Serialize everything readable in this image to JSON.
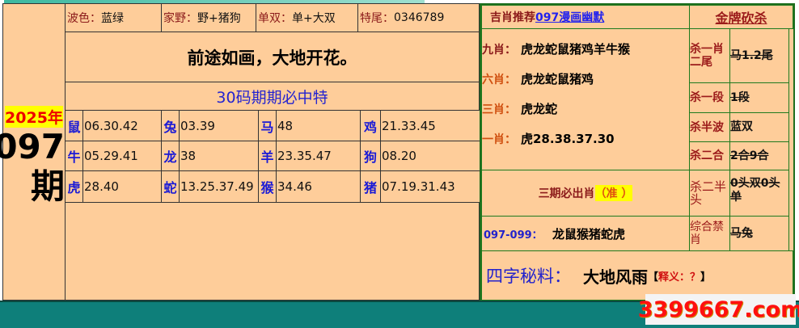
{
  "left": {
    "year": "2025年",
    "issue": "097",
    "issue_suffix": "期",
    "info": [
      {
        "label": "波色：",
        "value": "蓝绿"
      },
      {
        "label": "家野：",
        "value": "野+猪狗"
      },
      {
        "label": "单双：",
        "value": "单+大双"
      },
      {
        "label": "特尾：",
        "value": "0346789"
      }
    ],
    "motto": "前途如画，大地开花。",
    "grid_title": "30码期期必中特",
    "grid": [
      [
        {
          "z": "鼠",
          "n": "06.30.42"
        },
        {
          "z": "兔",
          "n": "03.39"
        },
        {
          "z": "马",
          "n": "48"
        },
        {
          "z": "鸡",
          "n": "21.33.45"
        }
      ],
      [
        {
          "z": "牛",
          "n": "05.29.41"
        },
        {
          "z": "龙",
          "n": "38"
        },
        {
          "z": "羊",
          "n": "23.35.47"
        },
        {
          "z": "狗",
          "n": "08.20"
        }
      ],
      [
        {
          "z": "虎",
          "n": "28.40"
        },
        {
          "z": "蛇",
          "n": "13.25.37.49"
        },
        {
          "z": "猴",
          "n": "34.46"
        },
        {
          "z": "猪",
          "n": "07.19.31.43"
        }
      ]
    ]
  },
  "right": {
    "header_prefix": "吉肖推荐",
    "header_link": "097漫画幽默",
    "kill_title": "金牌砍杀",
    "picks": [
      {
        "label": "九肖：",
        "value": "虎龙蛇鼠猪鸡羊牛猴"
      },
      {
        "label": "六肖：",
        "value": "虎龙蛇鼠猪鸡"
      },
      {
        "label": "三肖：",
        "value": "虎龙蛇"
      },
      {
        "label": "一肖：",
        "value": "虎28.38.37.30"
      }
    ],
    "kills": [
      {
        "label": "杀一肖二尾",
        "value": "马1.2尾"
      },
      {
        "label": "杀一段",
        "value": "1段"
      },
      {
        "label": "杀半波",
        "value": "蓝双"
      },
      {
        "label": "杀二合",
        "value": "2合9合"
      },
      {
        "label": "杀二半头",
        "value": "0头双0头单"
      },
      {
        "label": "综合禁肖",
        "value": "马兔"
      }
    ],
    "three_period": "三期必出肖",
    "three_period_note": "（准 ）",
    "range_label": "097-099：",
    "range_value": "龙鼠猴猪蛇虎",
    "secret_label": "四字秘料：",
    "secret_value": "大地风雨",
    "secret_note_open": "【",
    "secret_note": "释义：？",
    "secret_note_close": "】"
  },
  "watermark": "3399667.com",
  "colors": {
    "bg": "#fecd9a",
    "teal": "#0e7f7a",
    "green_border": "#1e7a1e",
    "blue": "#1a1ad6",
    "red": "#8b1a1a"
  }
}
